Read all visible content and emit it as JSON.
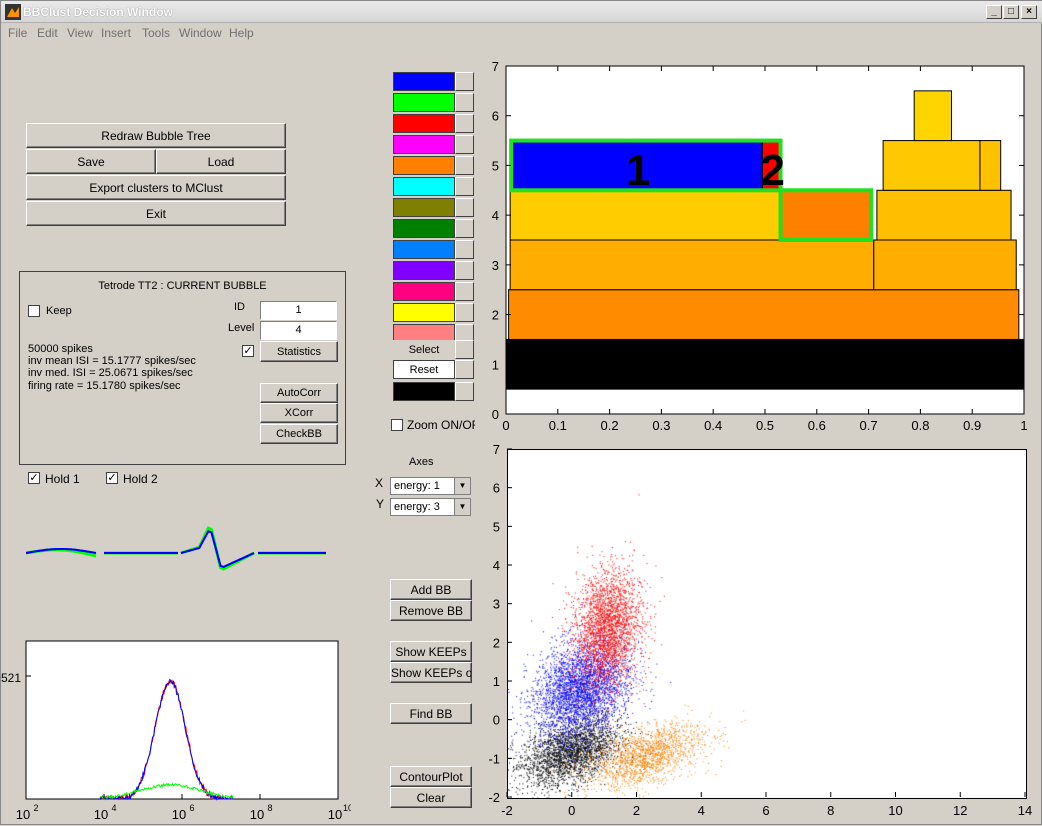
{
  "window": {
    "title": "BBClust Decision Window",
    "min_label": "_",
    "max_label": "□",
    "close_label": "×"
  },
  "menu": [
    "File",
    "Edit",
    "View",
    "Insert",
    "Tools",
    "Window",
    "Help"
  ],
  "buttons": {
    "redraw": "Redraw Bubble Tree",
    "save": "Save",
    "load": "Load",
    "export": "Export clusters to MClust",
    "exit": "Exit"
  },
  "current_bubble": {
    "title": "Tetrode TT2 : CURRENT BUBBLE",
    "keep_label": "Keep",
    "keep_checked": false,
    "id_label": "ID",
    "id_value": "1",
    "level_label": "Level",
    "level_value": "4",
    "stats_checked": true,
    "statistics_label": "Statistics",
    "stats_lines": [
      "50000 spikes",
      "inv mean ISI = 15.1777 spikes/sec",
      "inv med. ISI = 25.0671 spikes/sec",
      "firing rate = 15.1780 spikes/sec"
    ],
    "autocorr_label": "AutoCorr",
    "xcorr_label": "XCorr",
    "checkbb_label": "CheckBB"
  },
  "hold1_label": "Hold 1",
  "hold2_label": "Hold 2",
  "check_mark": "✓",
  "palette": {
    "colors": [
      "#0000ff",
      "#00ff00",
      "#ff0000",
      "#ff00ff",
      "#ff8000",
      "#00ffff",
      "#808000",
      "#008000",
      "#0080ff",
      "#8000ff",
      "#ff0080",
      "#ffff00",
      "#ff8080"
    ],
    "select_label": "Select",
    "reset_label": "Reset",
    "selected_color": "#000000"
  },
  "zoom_label": "Zoom ON/OFF",
  "axes": {
    "title": "Axes",
    "x_label": "X",
    "y_label": "Y",
    "x_value": "energy: 1",
    "y_value": "energy: 3"
  },
  "action_buttons": {
    "add": "Add BB",
    "remove": "Remove BB",
    "show_keeps": "Show KEEPs",
    "show_keeps_only": "Show KEEPs only",
    "find": "Find BB",
    "contour": "ContourPlot",
    "clear": "Clear"
  },
  "chart_data": [
    {
      "type": "bar",
      "description": "Bubble tree (rectangles by level)",
      "xlim": [
        0,
        1
      ],
      "ylim": [
        0,
        7
      ],
      "xticks": [
        "0",
        "0.1",
        "0.2",
        "0.3",
        "0.4",
        "0.5",
        "0.6",
        "0.7",
        "0.8",
        "0.9",
        "1"
      ],
      "yticks": [
        "0",
        "1",
        "2",
        "3",
        "4",
        "5",
        "6",
        "7"
      ],
      "boxes": [
        {
          "x0": 0,
          "x1": 1,
          "y0": 0.5,
          "y1": 1.5,
          "color": "#000000"
        },
        {
          "x0": 0.005,
          "x1": 0.99,
          "y0": 1.5,
          "y1": 2.5,
          "color": "#ff8c00"
        },
        {
          "x0": 0.008,
          "x1": 0.71,
          "y0": 2.5,
          "y1": 3.5,
          "color": "#ffae00"
        },
        {
          "x0": 0.71,
          "x1": 0.985,
          "y0": 2.5,
          "y1": 3.5,
          "color": "#ffae00"
        },
        {
          "x0": 0.008,
          "x1": 0.53,
          "y0": 3.5,
          "y1": 4.5,
          "color": "#ffcc00"
        },
        {
          "x0": 0.53,
          "x1": 0.705,
          "y0": 3.5,
          "y1": 4.5,
          "color": "#ff8000"
        },
        {
          "x0": 0.716,
          "x1": 0.975,
          "y0": 3.5,
          "y1": 4.5,
          "color": "#ffbe00"
        },
        {
          "x0": 0.01,
          "x1": 0.495,
          "y0": 4.5,
          "y1": 5.5,
          "color": "#0000ff"
        },
        {
          "x0": 0.495,
          "x1": 0.53,
          "y0": 4.5,
          "y1": 5.5,
          "color": "#ff0000"
        },
        {
          "x0": 0.728,
          "x1": 0.915,
          "y0": 4.5,
          "y1": 5.5,
          "color": "#ffc800"
        },
        {
          "x0": 0.915,
          "x1": 0.955,
          "y0": 4.5,
          "y1": 5.5,
          "color": "#ffc000"
        },
        {
          "x0": 0.788,
          "x1": 0.86,
          "y0": 5.5,
          "y1": 6.5,
          "color": "#ffd500"
        }
      ],
      "labels": [
        {
          "text": "1",
          "x": 0.255,
          "y": 4.95
        },
        {
          "text": "2",
          "x": 0.515,
          "y": 4.95
        }
      ],
      "highlights": [
        {
          "x0": 0.01,
          "x1": 0.53,
          "y0": 4.5,
          "y1": 5.5
        },
        {
          "x0": 0.53,
          "x1": 0.705,
          "y0": 3.5,
          "y1": 4.5
        }
      ]
    },
    {
      "type": "scatter",
      "description": "Energy 1 vs energy 3 spike scatter",
      "xlim": [
        -2,
        14
      ],
      "ylim": [
        -2,
        7
      ],
      "xticks": [
        "-2",
        "0",
        "2",
        "4",
        "6",
        "8",
        "10",
        "12",
        "14"
      ],
      "yticks": [
        "-2",
        "-1",
        "0",
        "1",
        "2",
        "3",
        "4",
        "5",
        "6",
        "7"
      ],
      "clusters": [
        {
          "color": "#000000",
          "cx": -0.3,
          "cy": -0.8,
          "sx": 0.75,
          "sy": 0.4,
          "n": 2600
        },
        {
          "color": "#ff8000",
          "cx": 2.0,
          "cy": -0.9,
          "sx": 0.9,
          "sy": 0.35,
          "n": 1600
        },
        {
          "color": "#0000ff",
          "cx": 0.0,
          "cy": 0.8,
          "sx": 0.7,
          "sy": 0.6,
          "n": 3200
        },
        {
          "color": "#ff0000",
          "cx": 0.8,
          "cy": 2.4,
          "sx": 0.5,
          "sy": 0.75,
          "n": 2600
        }
      ]
    },
    {
      "type": "line",
      "description": "Average waveforms across 4 channels",
      "series": [
        {
          "color": "#00ff00"
        },
        {
          "color": "#8000ff"
        },
        {
          "color": "#0000ff"
        }
      ]
    },
    {
      "type": "line",
      "description": "ISI histogram (log x-axis)",
      "xscale": "log",
      "xlim": [
        100,
        10000000000
      ],
      "xticks": [
        "10",
        "10",
        "10",
        "10",
        "10"
      ],
      "xtick_exps": [
        "2",
        "4",
        "6",
        "8",
        "10"
      ],
      "ylabel_tick": "521",
      "peak_x": 500000,
      "series": [
        {
          "color": "#ff0000"
        },
        {
          "color": "#0000ff"
        },
        {
          "color": "#00ff00"
        }
      ]
    }
  ]
}
